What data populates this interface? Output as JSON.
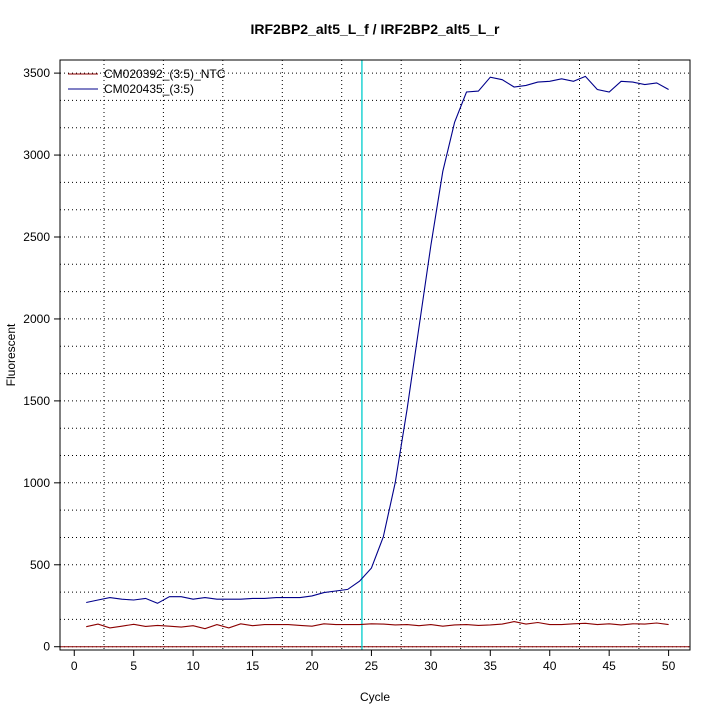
{
  "chart_data": {
    "type": "line",
    "title": "IRF2BP2_alt5_L_f / IRF2BP2_alt5_L_r",
    "xlabel": "Cycle",
    "ylabel": "Fluorescent",
    "xlim": [
      -1.2,
      51.8
    ],
    "ylim": [
      -20,
      3580
    ],
    "x_ticks": [
      0,
      5,
      10,
      15,
      20,
      25,
      30,
      35,
      40,
      45,
      50
    ],
    "y_ticks": [
      0,
      500,
      1000,
      1500,
      2000,
      2500,
      3000,
      3500
    ],
    "grid": true,
    "legend_position": "top-left",
    "threshold_line": {
      "y": 0,
      "color": "#8b0000"
    },
    "cycle_marker": {
      "x": 24.2,
      "color": "#00cdcd"
    },
    "series": [
      {
        "name": "CM020392_(3:5)_NTC",
        "color": "#8b0000",
        "x": [
          1,
          2,
          3,
          4,
          5,
          6,
          7,
          8,
          9,
          10,
          11,
          12,
          13,
          14,
          15,
          16,
          17,
          18,
          19,
          20,
          21,
          22,
          23,
          24,
          25,
          26,
          27,
          28,
          29,
          30,
          31,
          32,
          33,
          34,
          35,
          36,
          37,
          38,
          39,
          40,
          41,
          42,
          43,
          44,
          45,
          46,
          47,
          48,
          49,
          50
        ],
        "values": [
          122,
          138,
          115,
          125,
          137,
          124,
          130,
          125,
          120,
          128,
          110,
          135,
          115,
          140,
          128,
          135,
          135,
          135,
          130,
          125,
          140,
          135,
          135,
          135,
          140,
          138,
          133,
          135,
          128,
          135,
          125,
          133,
          135,
          130,
          133,
          138,
          153,
          138,
          148,
          135,
          135,
          140,
          143,
          135,
          140,
          133,
          140,
          138,
          145,
          135
        ]
      },
      {
        "name": "CM020435_(3:5)",
        "color": "#00008b",
        "x": [
          1,
          2,
          3,
          4,
          5,
          6,
          7,
          8,
          9,
          10,
          11,
          12,
          13,
          14,
          15,
          16,
          17,
          18,
          19,
          20,
          21,
          22,
          23,
          24,
          25,
          26,
          27,
          28,
          29,
          30,
          31,
          32,
          33,
          34,
          35,
          36,
          37,
          38,
          39,
          40,
          41,
          42,
          43,
          44,
          45,
          46,
          47,
          48,
          49,
          50
        ],
        "values": [
          270,
          285,
          300,
          290,
          285,
          295,
          265,
          305,
          305,
          290,
          300,
          290,
          290,
          290,
          295,
          295,
          300,
          300,
          300,
          310,
          330,
          340,
          350,
          400,
          480,
          670,
          1000,
          1450,
          1950,
          2450,
          2900,
          3200,
          3385,
          3390,
          3475,
          3460,
          3415,
          3425,
          3445,
          3450,
          3465,
          3450,
          3480,
          3400,
          3385,
          3450,
          3445,
          3430,
          3440,
          3400
        ]
      }
    ]
  }
}
